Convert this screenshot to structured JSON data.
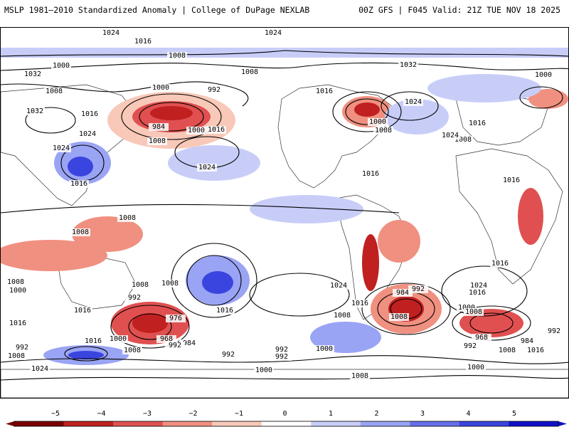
{
  "header": {
    "left_title": "MSLP 1981–2010 Standardized Anomaly | College of DuPage NEXLAB",
    "right_title": "00Z GFS | F045 Valid: 21Z TUE NOV 18 2025"
  },
  "colorbar": {
    "ticks": [
      "−5",
      "−4",
      "−3",
      "−2",
      "−1",
      "0",
      "1",
      "2",
      "3",
      "4",
      "5"
    ],
    "colors": [
      "#7a0000",
      "#c02020",
      "#e05050",
      "#f09080",
      "#f8c8b8",
      "#ffffff",
      "#c8cdf8",
      "#9aa4f4",
      "#6670ea",
      "#3a44de",
      "#1010c8"
    ]
  },
  "isobars": [
    {
      "text": "1024"
    },
    {
      "text": "1024"
    },
    {
      "text": "1016"
    },
    {
      "text": "1008"
    },
    {
      "text": "1032"
    },
    {
      "text": "1000"
    },
    {
      "text": "1000"
    },
    {
      "text": "1008"
    },
    {
      "text": "1008"
    },
    {
      "text": "992"
    },
    {
      "text": "1008"
    },
    {
      "text": "1032"
    },
    {
      "text": "1016"
    },
    {
      "text": "1024"
    },
    {
      "text": "1016"
    },
    {
      "text": "1000"
    },
    {
      "text": "984"
    },
    {
      "text": "1000"
    },
    {
      "text": "1016"
    },
    {
      "text": "1008"
    },
    {
      "text": "1024"
    },
    {
      "text": "1024"
    },
    {
      "text": "1032"
    },
    {
      "text": "1016"
    },
    {
      "text": "1024"
    },
    {
      "text": "1000"
    },
    {
      "text": "1008"
    },
    {
      "text": "1016"
    },
    {
      "text": "1024"
    },
    {
      "text": "1016"
    },
    {
      "text": "1016"
    },
    {
      "text": "1008"
    },
    {
      "text": "1008"
    },
    {
      "text": "1008"
    },
    {
      "text": "1016"
    },
    {
      "text": "1008"
    },
    {
      "text": "1000"
    },
    {
      "text": "1016"
    },
    {
      "text": "992"
    },
    {
      "text": "976"
    },
    {
      "text": "968"
    },
    {
      "text": "1000"
    },
    {
      "text": "984"
    },
    {
      "text": "992"
    },
    {
      "text": "1016"
    },
    {
      "text": "1008"
    },
    {
      "text": "992"
    },
    {
      "text": "1008"
    },
    {
      "text": "1024"
    },
    {
      "text": "1016"
    },
    {
      "text": "1008"
    },
    {
      "text": "992"
    },
    {
      "text": "992"
    },
    {
      "text": "1000"
    },
    {
      "text": "1008"
    },
    {
      "text": "1000"
    },
    {
      "text": "1024"
    },
    {
      "text": "1008"
    },
    {
      "text": "1016"
    },
    {
      "text": "984"
    },
    {
      "text": "992"
    },
    {
      "text": "1024"
    },
    {
      "text": "1016"
    },
    {
      "text": "1000"
    },
    {
      "text": "1008"
    },
    {
      "text": "968"
    },
    {
      "text": "984"
    },
    {
      "text": "992"
    },
    {
      "text": "1008"
    },
    {
      "text": "1016"
    },
    {
      "text": "992"
    },
    {
      "text": "1000"
    },
    {
      "text": "1016"
    },
    {
      "text": "1008"
    },
    {
      "text": "992"
    }
  ]
}
